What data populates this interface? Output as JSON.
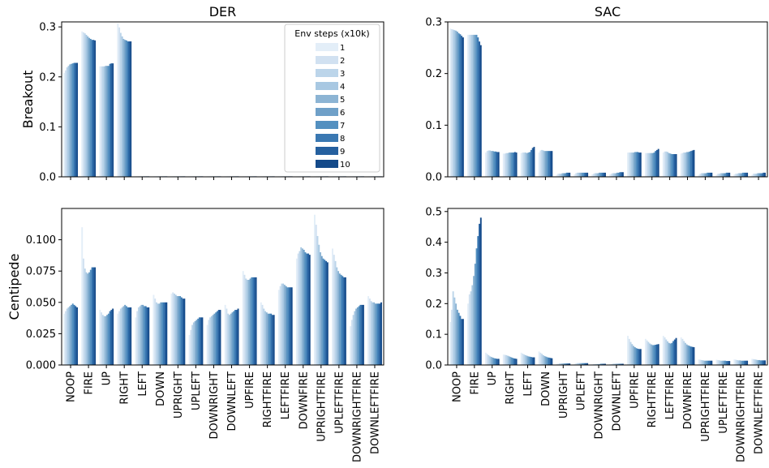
{
  "chart_data": [
    {
      "type": "bar",
      "panel": "DER-Breakout",
      "title": "DER",
      "ylabel": "Breakout",
      "ylim": [
        0,
        0.31
      ],
      "yticks": [
        0.0,
        0.1,
        0.2,
        0.3
      ],
      "ytick_labels": [
        "0.0",
        "0.1",
        "0.2",
        "0.3"
      ],
      "show_xlabels": false,
      "legend": true,
      "values": [
        [
          0.208,
          0.213,
          0.219,
          0.222,
          0.225,
          0.226,
          0.227,
          0.228,
          0.228,
          0.228
        ],
        [
          0.291,
          0.289,
          0.287,
          0.284,
          0.281,
          0.278,
          0.276,
          0.274,
          0.274,
          0.273
        ],
        [
          0.221,
          0.221,
          0.221,
          0.221,
          0.222,
          0.222,
          0.222,
          0.226,
          0.227,
          0.227
        ],
        [
          0.307,
          0.299,
          0.288,
          0.281,
          0.276,
          0.274,
          0.273,
          0.271,
          0.271,
          0.271
        ],
        [
          0.001,
          0.001,
          0.001,
          0.001,
          0.001,
          0.001,
          0.001,
          0.001,
          0.001,
          0.001
        ],
        [
          0.001,
          0.001,
          0.001,
          0.001,
          0.001,
          0.001,
          0.001,
          0.001,
          0.001,
          0.001
        ],
        [
          0.001,
          0.001,
          0.001,
          0.001,
          0.001,
          0.001,
          0.001,
          0.001,
          0.001,
          0.001
        ],
        [
          0.001,
          0.001,
          0.001,
          0.001,
          0.001,
          0.001,
          0.001,
          0.001,
          0.001,
          0.001
        ],
        [
          0.001,
          0.001,
          0.001,
          0.001,
          0.001,
          0.001,
          0.001,
          0.001,
          0.001,
          0.001
        ],
        [
          0.001,
          0.001,
          0.001,
          0.001,
          0.001,
          0.001,
          0.001,
          0.001,
          0.001,
          0.001
        ],
        [
          0.001,
          0.001,
          0.001,
          0.001,
          0.001,
          0.001,
          0.001,
          0.001,
          0.001,
          0.001
        ],
        [
          0.001,
          0.001,
          0.001,
          0.001,
          0.001,
          0.001,
          0.001,
          0.001,
          0.001,
          0.001
        ],
        [
          0.001,
          0.001,
          0.001,
          0.001,
          0.001,
          0.001,
          0.001,
          0.001,
          0.001,
          0.001
        ],
        [
          0.001,
          0.001,
          0.001,
          0.001,
          0.001,
          0.001,
          0.001,
          0.001,
          0.001,
          0.001
        ],
        [
          0.001,
          0.001,
          0.001,
          0.001,
          0.001,
          0.001,
          0.001,
          0.001,
          0.001,
          0.001
        ],
        [
          0.001,
          0.001,
          0.001,
          0.001,
          0.001,
          0.001,
          0.001,
          0.001,
          0.001,
          0.001
        ],
        [
          0.001,
          0.001,
          0.001,
          0.001,
          0.001,
          0.001,
          0.001,
          0.001,
          0.001,
          0.001
        ],
        [
          0.001,
          0.001,
          0.001,
          0.001,
          0.001,
          0.001,
          0.001,
          0.001,
          0.001,
          0.001
        ]
      ]
    },
    {
      "type": "bar",
      "panel": "SAC-Breakout",
      "title": "SAC",
      "ylabel": "",
      "ylim": [
        0,
        0.3
      ],
      "yticks": [
        0.0,
        0.1,
        0.2,
        0.3
      ],
      "ytick_labels": [
        "0.0",
        "0.1",
        "0.2",
        "0.3"
      ],
      "show_xlabels": false,
      "legend": false,
      "values": [
        [
          0.287,
          0.286,
          0.285,
          0.284,
          0.283,
          0.281,
          0.278,
          0.276,
          0.273,
          0.27
        ],
        [
          0.275,
          0.275,
          0.275,
          0.275,
          0.275,
          0.275,
          0.275,
          0.27,
          0.262,
          0.255
        ],
        [
          0.047,
          0.05,
          0.051,
          0.051,
          0.05,
          0.05,
          0.049,
          0.049,
          0.048,
          0.048
        ],
        [
          0.045,
          0.045,
          0.046,
          0.046,
          0.047,
          0.047,
          0.047,
          0.047,
          0.048,
          0.047
        ],
        [
          0.046,
          0.047,
          0.047,
          0.047,
          0.046,
          0.047,
          0.048,
          0.052,
          0.056,
          0.058
        ],
        [
          0.047,
          0.051,
          0.052,
          0.051,
          0.05,
          0.05,
          0.05,
          0.05,
          0.05,
          0.05
        ],
        [
          0.004,
          0.006,
          0.006,
          0.006,
          0.007,
          0.007,
          0.007,
          0.008,
          0.008,
          0.008
        ],
        [
          0.005,
          0.007,
          0.008,
          0.008,
          0.008,
          0.008,
          0.008,
          0.008,
          0.008,
          0.008
        ],
        [
          0.005,
          0.006,
          0.007,
          0.007,
          0.007,
          0.008,
          0.008,
          0.008,
          0.008,
          0.008
        ],
        [
          0.005,
          0.006,
          0.007,
          0.007,
          0.007,
          0.008,
          0.008,
          0.009,
          0.009,
          0.009
        ],
        [
          0.047,
          0.047,
          0.047,
          0.047,
          0.047,
          0.048,
          0.048,
          0.048,
          0.047,
          0.047
        ],
        [
          0.046,
          0.046,
          0.046,
          0.046,
          0.046,
          0.046,
          0.047,
          0.05,
          0.052,
          0.054
        ],
        [
          0.047,
          0.049,
          0.049,
          0.048,
          0.046,
          0.045,
          0.044,
          0.044,
          0.044,
          0.044
        ],
        [
          0.045,
          0.046,
          0.047,
          0.047,
          0.048,
          0.048,
          0.049,
          0.05,
          0.051,
          0.052
        ],
        [
          0.004,
          0.006,
          0.007,
          0.007,
          0.007,
          0.007,
          0.008,
          0.008,
          0.008,
          0.008
        ],
        [
          0.004,
          0.006,
          0.006,
          0.007,
          0.007,
          0.007,
          0.007,
          0.008,
          0.008,
          0.008
        ],
        [
          0.005,
          0.006,
          0.006,
          0.007,
          0.007,
          0.007,
          0.008,
          0.008,
          0.008,
          0.008
        ],
        [
          0.004,
          0.006,
          0.006,
          0.006,
          0.007,
          0.007,
          0.007,
          0.007,
          0.008,
          0.008
        ]
      ]
    },
    {
      "type": "bar",
      "panel": "DER-Centipede",
      "title": "",
      "ylabel": "Centipede",
      "ylim": [
        0,
        0.125
      ],
      "yticks": [
        0.0,
        0.025,
        0.05,
        0.075,
        0.1
      ],
      "ytick_labels": [
        "0.000",
        "0.025",
        "0.050",
        "0.075",
        "0.100"
      ],
      "show_xlabels": true,
      "legend": false,
      "values": [
        [
          0.041,
          0.043,
          0.045,
          0.046,
          0.047,
          0.048,
          0.049,
          0.048,
          0.047,
          0.046
        ],
        [
          0.11,
          0.085,
          0.077,
          0.074,
          0.073,
          0.074,
          0.076,
          0.078,
          0.078,
          0.078
        ],
        [
          0.044,
          0.042,
          0.04,
          0.039,
          0.039,
          0.04,
          0.041,
          0.043,
          0.044,
          0.045
        ],
        [
          0.041,
          0.043,
          0.045,
          0.046,
          0.047,
          0.048,
          0.047,
          0.046,
          0.046,
          0.046
        ],
        [
          0.038,
          0.043,
          0.046,
          0.047,
          0.048,
          0.048,
          0.047,
          0.047,
          0.046,
          0.046
        ],
        [
          0.056,
          0.053,
          0.05,
          0.049,
          0.049,
          0.05,
          0.05,
          0.05,
          0.05,
          0.05
        ],
        [
          0.057,
          0.058,
          0.057,
          0.056,
          0.055,
          0.055,
          0.055,
          0.054,
          0.053,
          0.053
        ],
        [
          0.024,
          0.028,
          0.032,
          0.034,
          0.035,
          0.036,
          0.037,
          0.038,
          0.038,
          0.038
        ],
        [
          0.032,
          0.036,
          0.038,
          0.039,
          0.04,
          0.041,
          0.042,
          0.043,
          0.044,
          0.044
        ],
        [
          0.048,
          0.045,
          0.041,
          0.04,
          0.041,
          0.042,
          0.043,
          0.044,
          0.044,
          0.045
        ],
        [
          0.075,
          0.072,
          0.069,
          0.068,
          0.068,
          0.069,
          0.07,
          0.07,
          0.07,
          0.07
        ],
        [
          0.05,
          0.048,
          0.045,
          0.043,
          0.042,
          0.041,
          0.041,
          0.041,
          0.04,
          0.04
        ],
        [
          0.06,
          0.063,
          0.065,
          0.065,
          0.064,
          0.063,
          0.062,
          0.062,
          0.062,
          0.062
        ],
        [
          0.085,
          0.089,
          0.091,
          0.094,
          0.093,
          0.092,
          0.09,
          0.089,
          0.089,
          0.088
        ],
        [
          0.12,
          0.112,
          0.103,
          0.096,
          0.09,
          0.087,
          0.085,
          0.084,
          0.083,
          0.082
        ],
        [
          0.093,
          0.088,
          0.083,
          0.078,
          0.075,
          0.073,
          0.072,
          0.071,
          0.07,
          0.07
        ],
        [
          0.031,
          0.036,
          0.04,
          0.043,
          0.045,
          0.046,
          0.047,
          0.048,
          0.048,
          0.048
        ],
        [
          0.055,
          0.053,
          0.051,
          0.05,
          0.05,
          0.049,
          0.049,
          0.049,
          0.049,
          0.05
        ]
      ]
    },
    {
      "type": "bar",
      "panel": "SAC-Centipede",
      "title": "",
      "ylabel": "",
      "ylim": [
        0,
        0.51
      ],
      "yticks": [
        0.0,
        0.1,
        0.2,
        0.3,
        0.4,
        0.5
      ],
      "ytick_labels": [
        "0.0",
        "0.1",
        "0.2",
        "0.3",
        "0.4",
        "0.5"
      ],
      "show_xlabels": true,
      "legend": false,
      "values": [
        [
          0.14,
          0.18,
          0.24,
          0.22,
          0.2,
          0.18,
          0.17,
          0.16,
          0.15,
          0.15
        ],
        [
          0.2,
          0.23,
          0.24,
          0.26,
          0.29,
          0.33,
          0.38,
          0.42,
          0.46,
          0.48
        ],
        [
          0.04,
          0.036,
          0.032,
          0.028,
          0.026,
          0.024,
          0.022,
          0.021,
          0.02,
          0.02
        ],
        [
          0.034,
          0.033,
          0.032,
          0.03,
          0.028,
          0.026,
          0.024,
          0.022,
          0.021,
          0.02
        ],
        [
          0.04,
          0.037,
          0.034,
          0.032,
          0.03,
          0.028,
          0.027,
          0.026,
          0.025,
          0.025
        ],
        [
          0.044,
          0.04,
          0.036,
          0.032,
          0.029,
          0.027,
          0.025,
          0.024,
          0.023,
          0.022
        ],
        [
          0.004,
          0.004,
          0.005,
          0.005,
          0.005,
          0.005,
          0.005,
          0.005,
          0.005,
          0.005
        ],
        [
          0.004,
          0.005,
          0.006,
          0.006,
          0.006,
          0.006,
          0.006,
          0.006,
          0.006,
          0.006
        ],
        [
          0.002,
          0.003,
          0.003,
          0.003,
          0.003,
          0.003,
          0.004,
          0.004,
          0.004,
          0.004
        ],
        [
          0.003,
          0.003,
          0.004,
          0.004,
          0.004,
          0.004,
          0.004,
          0.004,
          0.004,
          0.004
        ],
        [
          0.095,
          0.085,
          0.075,
          0.068,
          0.062,
          0.058,
          0.055,
          0.053,
          0.052,
          0.052
        ],
        [
          0.085,
          0.08,
          0.075,
          0.07,
          0.067,
          0.065,
          0.065,
          0.066,
          0.067,
          0.068
        ],
        [
          0.095,
          0.09,
          0.083,
          0.077,
          0.072,
          0.07,
          0.072,
          0.078,
          0.083,
          0.088
        ],
        [
          0.09,
          0.085,
          0.078,
          0.072,
          0.067,
          0.064,
          0.062,
          0.06,
          0.059,
          0.058
        ],
        [
          0.018,
          0.017,
          0.016,
          0.015,
          0.014,
          0.014,
          0.014,
          0.014,
          0.014,
          0.014
        ],
        [
          0.017,
          0.016,
          0.015,
          0.014,
          0.014,
          0.014,
          0.014,
          0.013,
          0.013,
          0.013
        ],
        [
          0.018,
          0.017,
          0.016,
          0.015,
          0.015,
          0.014,
          0.014,
          0.014,
          0.014,
          0.014
        ],
        [
          0.02,
          0.019,
          0.018,
          0.017,
          0.016,
          0.016,
          0.015,
          0.015,
          0.015,
          0.015
        ]
      ]
    }
  ],
  "categories": [
    "NOOP",
    "FIRE",
    "UP",
    "RIGHT",
    "LEFT",
    "DOWN",
    "UPRIGHT",
    "UPLEFT",
    "DOWNRIGHT",
    "DOWNLEFT",
    "UPFIRE",
    "RIGHTFIRE",
    "LEFTFIRE",
    "DOWNFIRE",
    "UPRIGHTFIRE",
    "UPLEFTFIRE",
    "DOWNRIGHTFIRE",
    "DOWNLEFTFIRE"
  ],
  "legend": {
    "title": "Env steps (x10k)",
    "placement": "top-right",
    "entries": [
      "1",
      "2",
      "3",
      "4",
      "5",
      "6",
      "7",
      "8",
      "9",
      "10"
    ]
  },
  "series_colors": [
    "#e3eef8",
    "#d1e1f1",
    "#bcd5ea",
    "#a8c8e2",
    "#8cb4d4",
    "#6fa0c8",
    "#5390c0",
    "#3a78b2",
    "#25609f",
    "#144a8a"
  ],
  "grid": false
}
